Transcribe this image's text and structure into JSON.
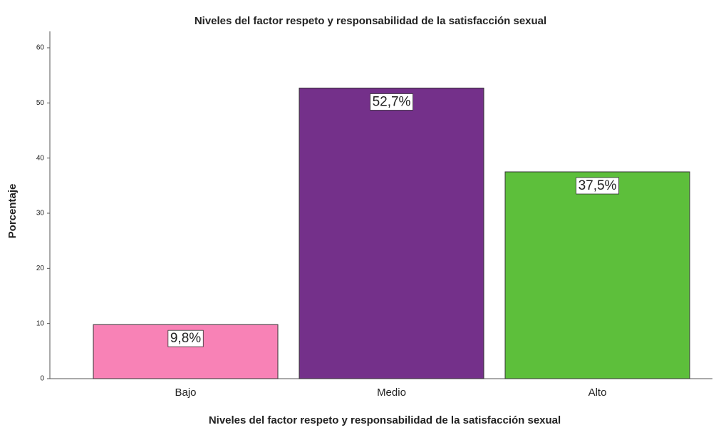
{
  "chart_data": {
    "type": "bar",
    "title": "Niveles del factor respeto y responsabilidad de la satisfacción sexual",
    "x_label": "Niveles del factor respeto y responsabilidad de la satisfacción sexual",
    "y_label": "Porcentaje",
    "categories": [
      "Bajo",
      "Medio",
      "Alto"
    ],
    "values": [
      9.8,
      52.7,
      37.5
    ],
    "value_labels": [
      "9,8%",
      "52,7%",
      "37,5%"
    ],
    "colors": [
      "#f882b6",
      "#74308a",
      "#5dbf3b"
    ],
    "ylim": [
      0,
      60
    ],
    "yticks": [
      0,
      10,
      20,
      30,
      40,
      50,
      60
    ],
    "grid": false
  }
}
